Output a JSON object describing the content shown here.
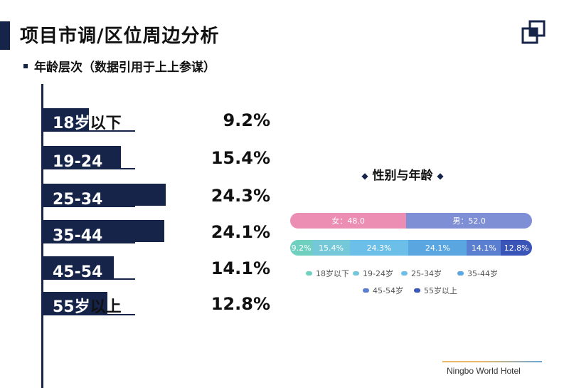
{
  "header": {
    "title": "项目市调/区位周边分析"
  },
  "section": {
    "subtitle": "年龄层次（数据引用于上上参谋）"
  },
  "bars": [
    {
      "label": "18岁",
      "label_dark": "以下",
      "value_label": "9.2%"
    },
    {
      "label": "19-24",
      "label_dark": "",
      "value_label": "15.4%"
    },
    {
      "label": "25-34",
      "label_dark": "",
      "value_label": "24.3%"
    },
    {
      "label": "35-44",
      "label_dark": "",
      "value_label": "24.1%"
    },
    {
      "label": "45-54",
      "label_dark": "",
      "value_label": "14.1%"
    },
    {
      "label": "55岁",
      "label_dark": "以上",
      "value_label": "12.8%"
    }
  ],
  "right_panel": {
    "title": "性别与年龄",
    "gender": [
      {
        "label": "女：48.0",
        "value": 48.0,
        "color": "#ec8db4"
      },
      {
        "label": "男：52.0",
        "value": 52.0,
        "color": "#7f8fd6"
      }
    ],
    "age": [
      {
        "label": "9.2%",
        "value": 9.2,
        "color": "#6fd0c0"
      },
      {
        "label": "15.4%",
        "value": 15.4,
        "color": "#74c8d8"
      },
      {
        "label": "24.3%",
        "value": 24.3,
        "color": "#6cbfe8"
      },
      {
        "label": "24.1%",
        "value": 24.1,
        "color": "#5aa6e0"
      },
      {
        "label": "14.1%",
        "value": 14.1,
        "color": "#5a7fd0"
      },
      {
        "label": "12.8%",
        "value": 12.8,
        "color": "#3a54b8"
      }
    ],
    "legend": [
      {
        "label": "18岁以下",
        "color": "#6fd0c0"
      },
      {
        "label": "19-24岁",
        "color": "#74c8d8"
      },
      {
        "label": "25-34岁",
        "color": "#6cbfe8"
      },
      {
        "label": "35-44岁",
        "color": "#5aa6e0"
      },
      {
        "label": "45-54岁",
        "color": "#5a7fd0"
      },
      {
        "label": "55岁以上",
        "color": "#3a54b8"
      }
    ]
  },
  "footer": {
    "text": "Ningbo World Hotel"
  },
  "chart_data": [
    {
      "type": "bar",
      "orientation": "horizontal",
      "title": "",
      "categories": [
        "18岁以下",
        "19-24",
        "25-34",
        "35-44",
        "45-54",
        "55岁以上"
      ],
      "values": [
        9.2,
        15.4,
        24.3,
        24.1,
        14.1,
        12.8
      ],
      "xlim": [
        0,
        26
      ]
    },
    {
      "type": "bar",
      "orientation": "horizontal",
      "stacked": true,
      "title": "性别与年龄",
      "series": [
        {
          "name": "女",
          "values": [
            48.0
          ]
        },
        {
          "name": "男",
          "values": [
            52.0
          ]
        }
      ]
    },
    {
      "type": "bar",
      "orientation": "horizontal",
      "stacked": true,
      "title": "性别与年龄",
      "series": [
        {
          "name": "18岁以下",
          "values": [
            9.2
          ]
        },
        {
          "name": "19-24岁",
          "values": [
            15.4
          ]
        },
        {
          "name": "25-34岁",
          "values": [
            24.3
          ]
        },
        {
          "name": "35-44岁",
          "values": [
            24.1
          ]
        },
        {
          "name": "45-54岁",
          "values": [
            14.1
          ]
        },
        {
          "name": "55岁以上",
          "values": [
            12.8
          ]
        }
      ]
    }
  ]
}
